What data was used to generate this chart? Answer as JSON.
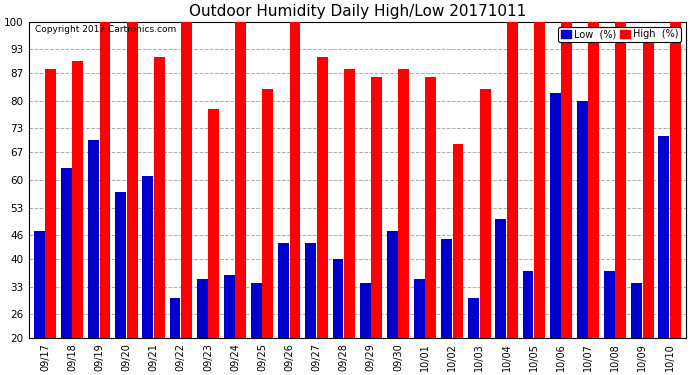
{
  "title": "Outdoor Humidity Daily High/Low 20171011",
  "copyright": "Copyright 2017 Cartronics.com",
  "dates": [
    "09/17",
    "09/18",
    "09/19",
    "09/20",
    "09/21",
    "09/22",
    "09/23",
    "09/24",
    "09/25",
    "09/26",
    "09/27",
    "09/28",
    "09/29",
    "09/30",
    "10/01",
    "10/02",
    "10/03",
    "10/04",
    "10/05",
    "10/06",
    "10/07",
    "10/08",
    "10/09",
    "10/10"
  ],
  "high": [
    88,
    90,
    100,
    100,
    91,
    100,
    78,
    100,
    83,
    100,
    91,
    88,
    86,
    88,
    86,
    69,
    83,
    100,
    100,
    100,
    100,
    100,
    97,
    100
  ],
  "low": [
    47,
    63,
    70,
    57,
    61,
    30,
    35,
    36,
    34,
    44,
    44,
    40,
    34,
    47,
    35,
    45,
    30,
    50,
    37,
    82,
    80,
    37,
    34,
    71
  ],
  "high_color": "#ff0000",
  "low_color": "#0000cc",
  "bg_color": "#ffffff",
  "grid_color": "#aaaaaa",
  "title_fontsize": 11,
  "ylim_min": 20,
  "ylim_max": 100,
  "yticks": [
    20,
    26,
    33,
    40,
    46,
    53,
    60,
    67,
    73,
    80,
    87,
    93,
    100
  ]
}
